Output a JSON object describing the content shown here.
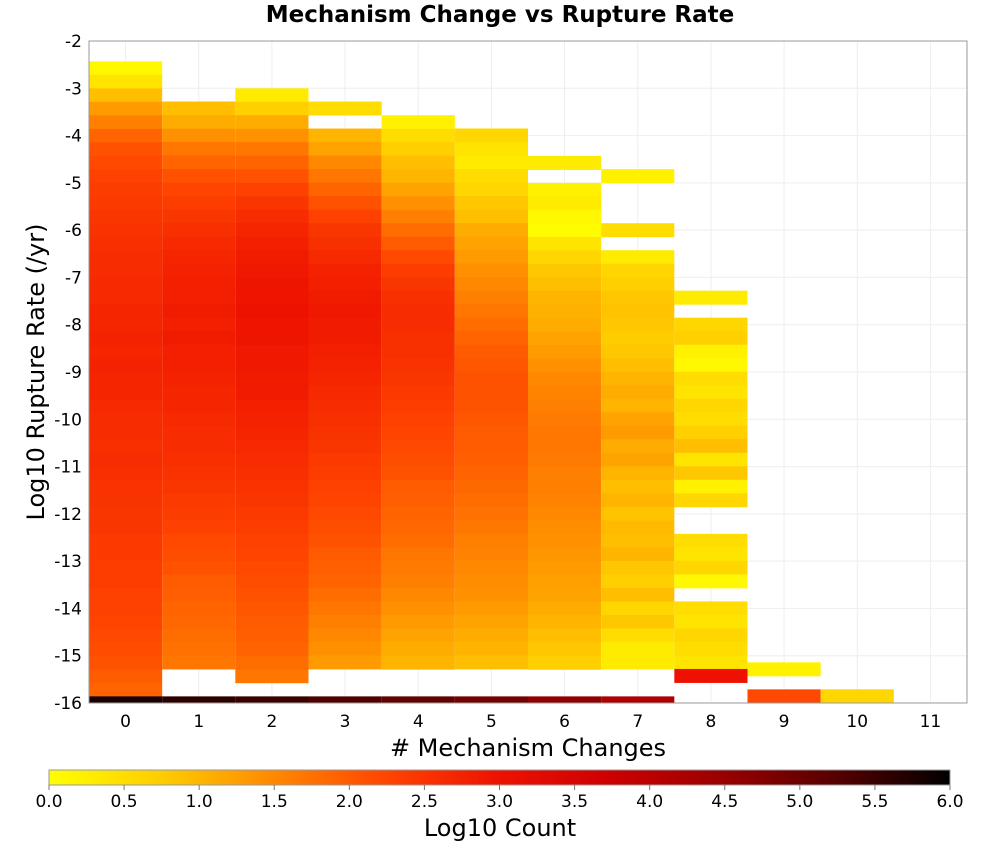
{
  "chart_data": {
    "type": "heatmap",
    "title": "Mechanism Change vs Rupture Rate",
    "xlabel": "# Mechanism Changes",
    "ylabel": "Log10 Rupture Rate (/yr)",
    "x_ticks": [
      "0",
      "1",
      "2",
      "3",
      "4",
      "5",
      "6",
      "7",
      "8",
      "9",
      "10",
      "11"
    ],
    "y_ticks": [
      "-2",
      "-3",
      "-4",
      "-5",
      "-6",
      "-7",
      "-8",
      "-9",
      "-10",
      "-11",
      "-12",
      "-13",
      "-14",
      "-15",
      "-16"
    ],
    "xlim": [
      -0.5,
      11.5
    ],
    "ylim": [
      -16,
      -2
    ],
    "y_bin_size": 0.2857,
    "colorbar": {
      "label": "Log10 Count",
      "range": [
        0.0,
        6.0
      ],
      "ticks": [
        "0.0",
        "0.5",
        "1.0",
        "1.5",
        "2.0",
        "2.5",
        "3.0",
        "3.5",
        "4.0",
        "4.5",
        "5.0",
        "5.5",
        "6.0"
      ],
      "stops": [
        "#ffff00",
        "#ffcc00",
        "#ff8800",
        "#ff4400",
        "#ee1100",
        "#cc0000",
        "#990000",
        "#550000",
        "#000000"
      ]
    },
    "series": [
      {
        "x": 0,
        "y_top": -2.43,
        "values": [
          0.1,
          0.4,
          0.9,
          1.3,
          1.6,
          1.9,
          2.1,
          2.2,
          2.3,
          2.35,
          2.4,
          2.45,
          2.5,
          2.55,
          2.6,
          2.6,
          2.65,
          2.65,
          2.7,
          2.7,
          2.75,
          2.7,
          2.75,
          2.7,
          2.7,
          2.65,
          2.6,
          2.6,
          2.55,
          2.6,
          2.55,
          2.5,
          2.5,
          2.45,
          2.45,
          2.4,
          2.4,
          2.35,
          2.35,
          2.3,
          2.3,
          2.25,
          2.2,
          2.15,
          2.1,
          2.0,
          1.9
        ],
        "bottom_value": 5.8
      },
      {
        "x": 1,
        "y_top": -3.28,
        "values": [
          0.9,
          1.1,
          1.4,
          1.7,
          1.9,
          2.1,
          2.25,
          2.35,
          2.45,
          2.55,
          2.65,
          2.7,
          2.75,
          2.8,
          2.8,
          2.85,
          2.8,
          2.85,
          2.8,
          2.8,
          2.75,
          2.7,
          2.7,
          2.65,
          2.6,
          2.6,
          2.55,
          2.5,
          2.45,
          2.4,
          2.35,
          2.3,
          2.2,
          2.15,
          2.1,
          2.0,
          1.95,
          1.9,
          1.85,
          1.8,
          1.75,
          1.7
        ],
        "bottom_value": 5.6
      },
      {
        "x": 2,
        "y_top": -3.0,
        "values": [
          0.3,
          0.7,
          1.1,
          1.4,
          1.7,
          1.9,
          2.1,
          2.3,
          2.45,
          2.6,
          2.7,
          2.8,
          2.85,
          2.9,
          2.95,
          2.95,
          3.0,
          2.95,
          2.95,
          2.9,
          2.9,
          2.85,
          2.85,
          2.8,
          2.75,
          2.7,
          2.65,
          2.6,
          2.55,
          2.5,
          2.45,
          2.4,
          2.35,
          2.3,
          2.25,
          2.2,
          2.15,
          2.1,
          2.05,
          2.0,
          1.95,
          1.9,
          1.8,
          1.7
        ],
        "bottom_value": 5.5
      },
      {
        "x": 3,
        "y_top": -3.28,
        "values": [
          0.5,
          null,
          1.0,
          1.2,
          1.5,
          1.7,
          1.9,
          2.1,
          2.3,
          2.45,
          2.55,
          2.65,
          2.75,
          2.8,
          2.85,
          2.9,
          2.85,
          2.85,
          2.8,
          2.75,
          2.7,
          2.65,
          2.6,
          2.55,
          2.5,
          2.45,
          2.4,
          2.35,
          2.3,
          2.25,
          2.2,
          2.15,
          2.1,
          2.0,
          1.95,
          1.9,
          1.8,
          1.7,
          1.6,
          1.5,
          1.4,
          1.3
        ],
        "bottom_value": 5.3
      },
      {
        "x": 4,
        "y_top": -3.57,
        "values": [
          0.2,
          0.5,
          0.7,
          0.9,
          1.0,
          1.2,
          1.4,
          1.6,
          1.8,
          2.0,
          2.2,
          2.35,
          2.45,
          2.55,
          2.6,
          2.6,
          2.55,
          2.55,
          2.5,
          2.45,
          2.4,
          2.35,
          2.3,
          2.25,
          2.2,
          2.15,
          2.1,
          2.0,
          1.95,
          1.9,
          1.85,
          1.8,
          1.7,
          1.65,
          1.6,
          1.5,
          1.4,
          1.3,
          1.2,
          1.1,
          1.0
        ],
        "bottom_value": 5.1
      },
      {
        "x": 5,
        "y_top": -3.85,
        "values": [
          0.6,
          0.4,
          0.3,
          0.5,
          0.6,
          0.8,
          0.9,
          1.1,
          1.2,
          1.3,
          1.4,
          1.5,
          1.6,
          1.7,
          1.8,
          1.9,
          2.0,
          2.05,
          2.1,
          2.1,
          2.1,
          2.05,
          2.0,
          2.0,
          1.95,
          1.9,
          1.85,
          1.8,
          1.75,
          1.7,
          1.6,
          1.55,
          1.5,
          1.45,
          1.4,
          1.3,
          1.2,
          1.1,
          1.0,
          0.9
        ],
        "bottom_value": 4.9
      },
      {
        "x": 6,
        "y_top": -4.43,
        "values": [
          0.3,
          null,
          0.2,
          0.3,
          0.1,
          0.05,
          0.4,
          0.6,
          0.8,
          0.9,
          1.0,
          1.05,
          1.1,
          1.2,
          1.3,
          1.4,
          1.5,
          1.55,
          1.6,
          1.65,
          1.7,
          1.7,
          1.65,
          1.6,
          1.6,
          1.55,
          1.5,
          1.45,
          1.4,
          1.35,
          1.3,
          1.25,
          1.2,
          1.1,
          1.0,
          0.9,
          0.8,
          0.7
        ],
        "bottom_value": 4.6
      },
      {
        "x": 7,
        "y_top": -4.71,
        "values": [
          0.2,
          null,
          null,
          null,
          0.5,
          null,
          0.3,
          0.6,
          0.7,
          0.8,
          0.85,
          0.8,
          0.75,
          0.8,
          0.9,
          1.0,
          1.1,
          1.0,
          1.2,
          1.3,
          1.1,
          1.2,
          1.0,
          0.9,
          1.0,
          0.85,
          0.95,
          0.9,
          1.0,
          0.8,
          0.7,
          0.9,
          0.6,
          0.8,
          0.5,
          0.3,
          0.3
        ],
        "bottom_value": 4.2
      },
      {
        "x": 8,
        "y_top": -7.28,
        "values": [
          0.3,
          null,
          0.6,
          0.7,
          0.2,
          0.1,
          0.5,
          0.4,
          0.6,
          0.5,
          0.7,
          0.9,
          0.4,
          0.8,
          0.2,
          0.6,
          null,
          null,
          0.5,
          0.4,
          0.6,
          0.1,
          null,
          0.5,
          0.4,
          0.6,
          0.5,
          0.4,
          3.0
        ],
        "bottom_value": null
      },
      {
        "x": 9,
        "y_top": -15.14,
        "values": [
          0.2,
          null,
          2.2
        ],
        "bottom_value": null
      },
      {
        "x": 10,
        "y_top": -15.71,
        "values": [
          0.6
        ],
        "bottom_value": null
      }
    ]
  }
}
